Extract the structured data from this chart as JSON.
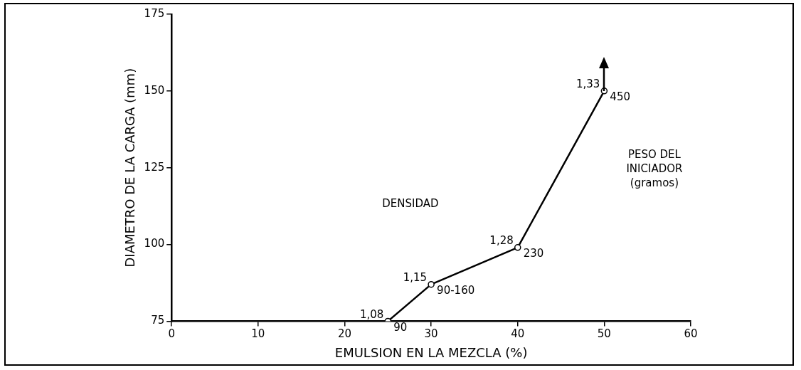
{
  "chart_data": {
    "type": "line",
    "xlabel": "EMULSION EN LA MEZCLA (%)",
    "ylabel": "DIAMETRO DE LA CARGA (mm)",
    "x": [
      25,
      30,
      40,
      50
    ],
    "values": [
      75,
      87,
      99,
      150
    ],
    "color": "#000000",
    "marker": "circle",
    "line_style": "solid",
    "grid": false,
    "legend": false,
    "xlim": [
      0,
      60
    ],
    "xticks": [
      0,
      10,
      20,
      30,
      40,
      50,
      60
    ],
    "ylim": [
      75,
      175
    ],
    "yticks": [
      75,
      100,
      125,
      150,
      175
    ],
    "annotations": [
      {
        "text": "1,08",
        "x": 25,
        "y": 75
      },
      {
        "text": "90",
        "x": 25,
        "y": 75
      },
      {
        "text": "1,15",
        "x": 30,
        "y": 87
      },
      {
        "text": "90-160",
        "x": 30,
        "y": 87
      },
      {
        "text": "1,28",
        "x": 40,
        "y": 99
      },
      {
        "text": "230",
        "x": 40,
        "y": 99
      },
      {
        "text": "1,33",
        "x": 50,
        "y": 150
      },
      {
        "text": "450",
        "x": 50,
        "y": 150
      },
      "DENSIDAD",
      "PESO DEL\nINICIADOR\n(gramos)"
    ]
  }
}
